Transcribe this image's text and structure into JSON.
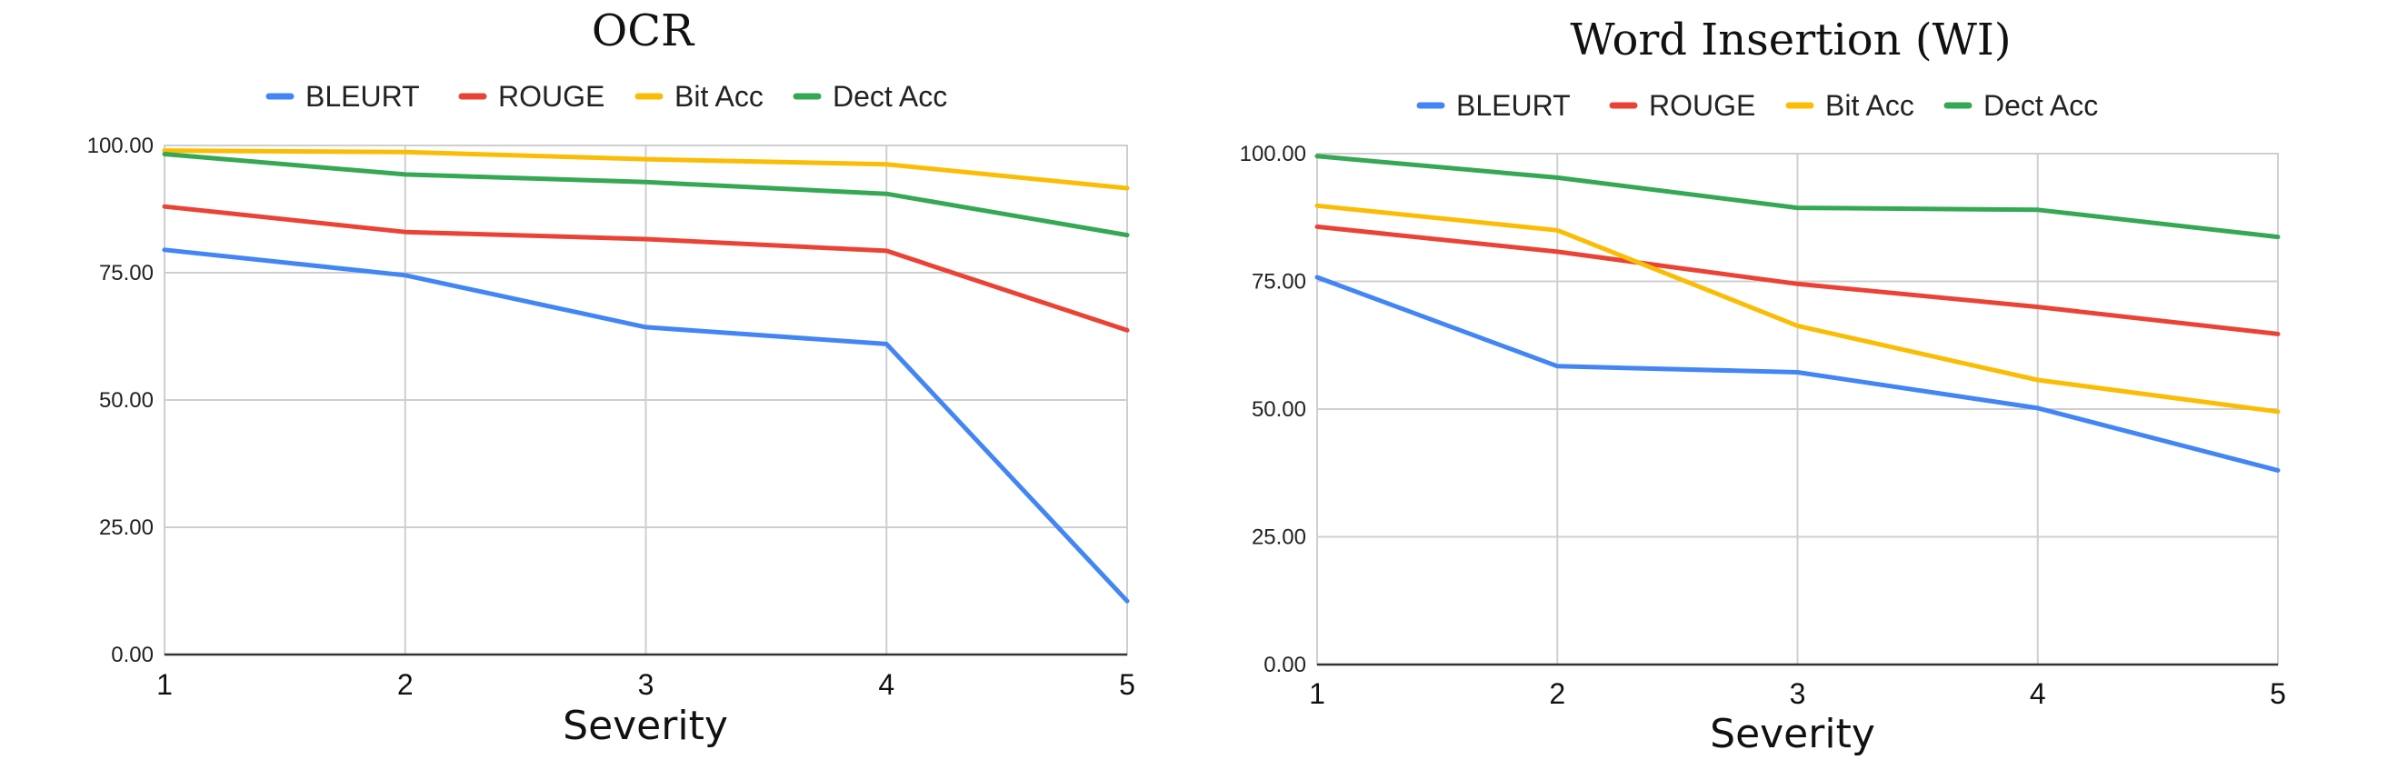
{
  "chart_data": [
    {
      "type": "line",
      "title": "OCR",
      "xlabel": "Severity",
      "ylabel": "",
      "x": [
        1,
        2,
        3,
        4,
        5
      ],
      "ylim": [
        0,
        100
      ],
      "yticks": [
        "0.00",
        "25.00",
        "50.00",
        "75.00",
        "100.00"
      ],
      "xticks": [
        "1",
        "2",
        "3",
        "4",
        "5"
      ],
      "grid": true,
      "legend": "top",
      "series": [
        {
          "name": "BLEURT",
          "color": "#4285F4",
          "values": [
            79.5,
            74.5,
            64.3,
            61.0,
            10.5
          ]
        },
        {
          "name": "ROUGE",
          "color": "#EA4335",
          "values": [
            88.0,
            83.0,
            81.6,
            79.3,
            63.7
          ]
        },
        {
          "name": "Bit Acc",
          "color": "#FBBC04",
          "values": [
            99.0,
            98.7,
            97.3,
            96.3,
            91.6
          ]
        },
        {
          "name": "Dect Acc",
          "color": "#34A853",
          "values": [
            98.3,
            94.3,
            92.8,
            90.5,
            82.4
          ]
        }
      ]
    },
    {
      "type": "line",
      "title": "Word Insertion (WI)",
      "xlabel": "Severity",
      "ylabel": "",
      "x": [
        1,
        2,
        3,
        4,
        5
      ],
      "ylim": [
        0,
        100
      ],
      "yticks": [
        "0.00",
        "25.00",
        "50.00",
        "75.00",
        "100.00"
      ],
      "xticks": [
        "1",
        "2",
        "3",
        "4",
        "5"
      ],
      "grid": true,
      "legend": "top",
      "series": [
        {
          "name": "BLEURT",
          "color": "#4285F4",
          "values": [
            75.8,
            58.4,
            57.2,
            50.2,
            38.0
          ]
        },
        {
          "name": "ROUGE",
          "color": "#EA4335",
          "values": [
            85.7,
            80.8,
            74.5,
            70.0,
            64.7
          ]
        },
        {
          "name": "Bit Acc",
          "color": "#FBBC04",
          "values": [
            89.8,
            85.0,
            66.3,
            55.7,
            49.5
          ]
        },
        {
          "name": "Dect Acc",
          "color": "#34A853",
          "values": [
            99.5,
            95.3,
            89.4,
            89.0,
            83.7
          ]
        }
      ]
    }
  ]
}
